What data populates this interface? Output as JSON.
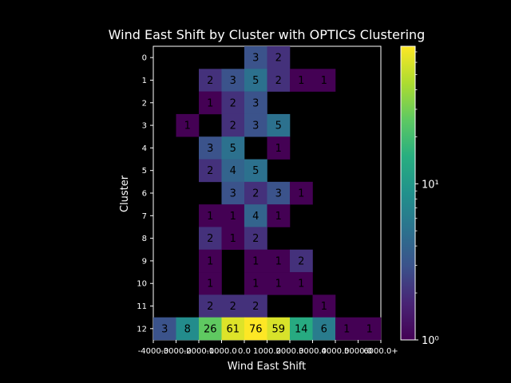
{
  "chart_data": {
    "type": "heatmap",
    "title": "Wind East Shift by Cluster with OPTICS Clustering",
    "xlabel": "Wind East Shift",
    "ylabel": "Cluster",
    "x_tick_labels": [
      "-4000.0",
      "-3000.0",
      "-2000.0",
      "-1000.0",
      "0.0",
      "1000.0",
      "2000.0",
      "3000.0",
      "4000.0",
      "5000.0",
      "6000.0+"
    ],
    "y_tick_labels": [
      "0",
      "1",
      "2",
      "3",
      "4",
      "5",
      "6",
      "7",
      "8",
      "9",
      "10",
      "11",
      "12"
    ],
    "colormap": "viridis",
    "color_scale": "log",
    "color_range": [
      1,
      76
    ],
    "colorbar_ticks": [
      {
        "value": 1,
        "label": "10⁰"
      },
      {
        "value": 10,
        "label": "10¹"
      }
    ],
    "background_color": "#000000",
    "cells": [
      {
        "row": 0,
        "col": 4,
        "value": 3
      },
      {
        "row": 0,
        "col": 5,
        "value": 2
      },
      {
        "row": 1,
        "col": 2,
        "value": 2
      },
      {
        "row": 1,
        "col": 3,
        "value": 3
      },
      {
        "row": 1,
        "col": 4,
        "value": 5
      },
      {
        "row": 1,
        "col": 5,
        "value": 2
      },
      {
        "row": 1,
        "col": 6,
        "value": 1
      },
      {
        "row": 1,
        "col": 7,
        "value": 1
      },
      {
        "row": 2,
        "col": 2,
        "value": 1
      },
      {
        "row": 2,
        "col": 3,
        "value": 2
      },
      {
        "row": 2,
        "col": 4,
        "value": 3
      },
      {
        "row": 3,
        "col": 1,
        "value": 1
      },
      {
        "row": 3,
        "col": 3,
        "value": 2
      },
      {
        "row": 3,
        "col": 4,
        "value": 3
      },
      {
        "row": 3,
        "col": 5,
        "value": 5
      },
      {
        "row": 4,
        "col": 2,
        "value": 3
      },
      {
        "row": 4,
        "col": 3,
        "value": 5
      },
      {
        "row": 4,
        "col": 5,
        "value": 1
      },
      {
        "row": 5,
        "col": 2,
        "value": 2
      },
      {
        "row": 5,
        "col": 3,
        "value": 4
      },
      {
        "row": 5,
        "col": 4,
        "value": 5
      },
      {
        "row": 6,
        "col": 3,
        "value": 3
      },
      {
        "row": 6,
        "col": 4,
        "value": 2
      },
      {
        "row": 6,
        "col": 5,
        "value": 3
      },
      {
        "row": 6,
        "col": 6,
        "value": 1
      },
      {
        "row": 7,
        "col": 2,
        "value": 1
      },
      {
        "row": 7,
        "col": 3,
        "value": 1
      },
      {
        "row": 7,
        "col": 4,
        "value": 4
      },
      {
        "row": 7,
        "col": 5,
        "value": 1
      },
      {
        "row": 8,
        "col": 2,
        "value": 2
      },
      {
        "row": 8,
        "col": 3,
        "value": 1
      },
      {
        "row": 8,
        "col": 4,
        "value": 2
      },
      {
        "row": 9,
        "col": 2,
        "value": 1
      },
      {
        "row": 9,
        "col": 4,
        "value": 1
      },
      {
        "row": 9,
        "col": 5,
        "value": 1
      },
      {
        "row": 9,
        "col": 6,
        "value": 2
      },
      {
        "row": 10,
        "col": 2,
        "value": 1
      },
      {
        "row": 10,
        "col": 4,
        "value": 1
      },
      {
        "row": 10,
        "col": 5,
        "value": 1
      },
      {
        "row": 10,
        "col": 6,
        "value": 1
      },
      {
        "row": 11,
        "col": 2,
        "value": 2
      },
      {
        "row": 11,
        "col": 3,
        "value": 2
      },
      {
        "row": 11,
        "col": 4,
        "value": 2
      },
      {
        "row": 11,
        "col": 7,
        "value": 1
      },
      {
        "row": 12,
        "col": 0,
        "value": 3
      },
      {
        "row": 12,
        "col": 1,
        "value": 8
      },
      {
        "row": 12,
        "col": 2,
        "value": 26
      },
      {
        "row": 12,
        "col": 3,
        "value": 61
      },
      {
        "row": 12,
        "col": 4,
        "value": 76
      },
      {
        "row": 12,
        "col": 5,
        "value": 59
      },
      {
        "row": 12,
        "col": 6,
        "value": 14
      },
      {
        "row": 12,
        "col": 7,
        "value": 6
      },
      {
        "row": 12,
        "col": 8,
        "value": 1
      },
      {
        "row": 12,
        "col": 9,
        "value": 1
      }
    ]
  }
}
